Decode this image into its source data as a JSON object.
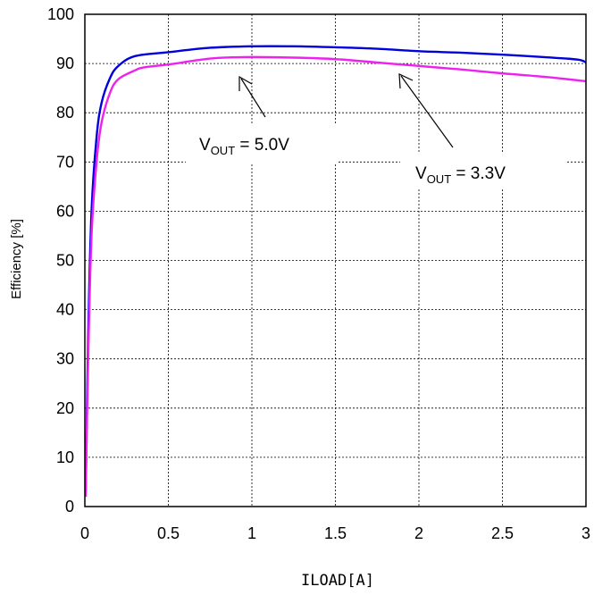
{
  "chart_data": {
    "type": "line",
    "title": "",
    "xlabel": "ILOAD[A]",
    "ylabel": "Efficiency [%]",
    "xlim": [
      0,
      3
    ],
    "ylim": [
      0,
      100
    ],
    "grid": true,
    "x_ticks": [
      "0",
      "0.5",
      "1",
      "1.5",
      "2",
      "2.5",
      "3"
    ],
    "y_ticks": [
      "0",
      "10",
      "20",
      "30",
      "40",
      "50",
      "60",
      "70",
      "80",
      "90",
      "100"
    ],
    "series": [
      {
        "color": "#0000dd",
        "points": [
          [
            0.005,
            3
          ],
          [
            0.02,
            35
          ],
          [
            0.04,
            60
          ],
          [
            0.07,
            75
          ],
          [
            0.1,
            82
          ],
          [
            0.15,
            87
          ],
          [
            0.2,
            89.5
          ],
          [
            0.3,
            91.5
          ],
          [
            0.5,
            92.3
          ],
          [
            0.75,
            93.2
          ],
          [
            1.0,
            93.5
          ],
          [
            1.25,
            93.5
          ],
          [
            1.5,
            93.3
          ],
          [
            1.75,
            93.0
          ],
          [
            2.0,
            92.5
          ],
          [
            2.25,
            92.2
          ],
          [
            2.5,
            91.8
          ],
          [
            2.75,
            91.3
          ],
          [
            2.95,
            90.8
          ],
          [
            3.0,
            90.2
          ]
        ]
      },
      {
        "color": "#ee22ee",
        "points": [
          [
            0.005,
            2
          ],
          [
            0.02,
            30
          ],
          [
            0.04,
            55
          ],
          [
            0.07,
            70
          ],
          [
            0.1,
            78
          ],
          [
            0.15,
            84
          ],
          [
            0.2,
            86.8
          ],
          [
            0.3,
            88.6
          ],
          [
            0.35,
            89.2
          ],
          [
            0.5,
            89.8
          ],
          [
            0.75,
            91.0
          ],
          [
            0.95,
            91.3
          ],
          [
            1.25,
            91.2
          ],
          [
            1.5,
            90.9
          ],
          [
            1.75,
            90.2
          ],
          [
            2.0,
            89.5
          ],
          [
            2.25,
            88.8
          ],
          [
            2.5,
            88.0
          ],
          [
            2.75,
            87.3
          ],
          [
            3.0,
            86.4
          ]
        ]
      }
    ],
    "annotations": [
      {
        "main": "V",
        "sub": "OUT",
        "rest": " = 5.0V"
      },
      {
        "main": "V",
        "sub": "OUT",
        "rest": " = 3.3V"
      }
    ]
  }
}
